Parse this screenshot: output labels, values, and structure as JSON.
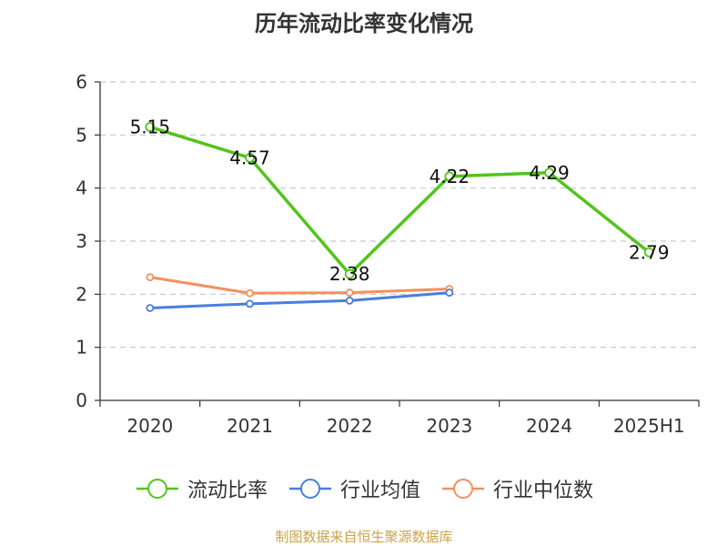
{
  "chart_title": "历年流动比率变化情况",
  "source_note": "制图数据来自恒生聚源数据库",
  "chart_data": {
    "type": "line",
    "title": "历年流动比率变化情况",
    "categories": [
      "2020",
      "2021",
      "2022",
      "2023",
      "2024",
      "2025H1"
    ],
    "ylim": [
      0,
      6
    ],
    "yticks": [
      "0",
      "1",
      "2",
      "3",
      "4",
      "5",
      "6"
    ],
    "grid": true,
    "legend_position": "bottom",
    "series": [
      {
        "name": "流动比率",
        "color": "#52c41a",
        "values": [
          5.15,
          4.57,
          2.38,
          4.22,
          4.29,
          2.79
        ],
        "labels": [
          "5.15",
          "4.57",
          "2.38",
          "4.22",
          "4.29",
          "2.79"
        ]
      },
      {
        "name": "行业均值",
        "color": "#4a7ee0",
        "values": [
          1.74,
          1.82,
          1.88,
          2.03,
          null,
          null
        ]
      },
      {
        "name": "行业中位数",
        "color": "#f5905e",
        "values": [
          2.32,
          2.02,
          2.03,
          2.1,
          null,
          null
        ]
      }
    ]
  }
}
